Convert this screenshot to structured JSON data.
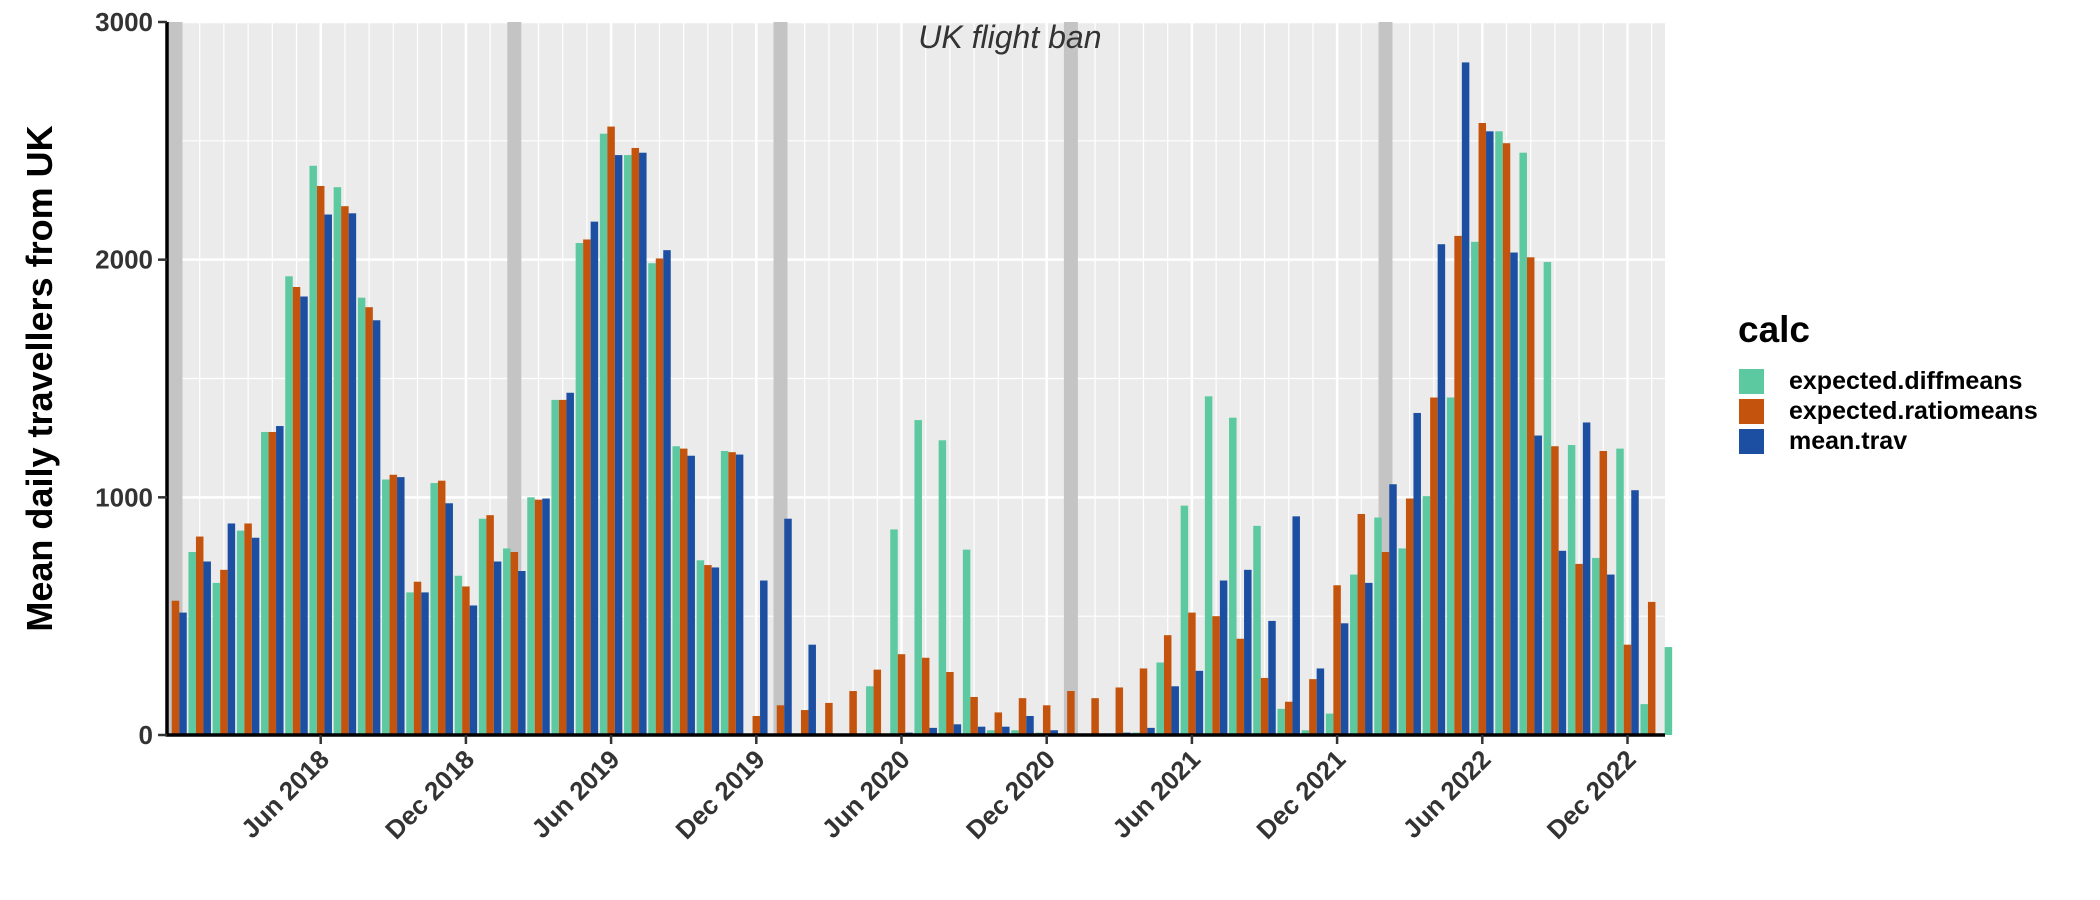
{
  "chart_data": {
    "type": "bar",
    "ylabel": "Mean daily travellers from UK",
    "xlabel": "",
    "ylim": [
      0,
      3000
    ],
    "yticks": [
      0,
      1000,
      2000,
      3000
    ],
    "grid": true,
    "legend_position": "right",
    "legend_title": "calc",
    "annotation": "UK flight ban",
    "annotation_bars": [
      "Dec 2017",
      "Feb 2019",
      "Jan 2020",
      "Jan 2021",
      "Feb 2022"
    ],
    "x_tick_labels": [
      "Jun 2018",
      "Dec 2018",
      "Jun 2019",
      "Dec 2019",
      "Jun 2020",
      "Dec 2020",
      "Jun 2021",
      "Dec 2021",
      "Jun 2022",
      "Dec 2022"
    ],
    "categories": [
      "Dec 2017",
      "Jan 2018",
      "Feb 2018",
      "Mar 2018",
      "Apr 2018",
      "May 2018",
      "Jun 2018",
      "Jul 2018",
      "Aug 2018",
      "Sep 2018",
      "Oct 2018",
      "Nov 2018",
      "Dec 2018",
      "Jan 2019",
      "Feb 2019",
      "Mar 2019",
      "Apr 2019",
      "May 2019",
      "Jun 2019",
      "Jul 2019",
      "Aug 2019",
      "Sep 2019",
      "Oct 2019",
      "Nov 2019",
      "Dec 2019",
      "Jan 2020",
      "Feb 2020",
      "Mar 2020",
      "Apr 2020",
      "May 2020",
      "Jun 2020",
      "Jul 2020",
      "Aug 2020",
      "Sep 2020",
      "Oct 2020",
      "Nov 2020",
      "Dec 2020",
      "Jan 2021",
      "Feb 2021",
      "Mar 2021",
      "Apr 2021",
      "May 2021",
      "Jun 2021",
      "Jul 2021",
      "Aug 2021",
      "Sep 2021",
      "Oct 2021",
      "Nov 2021",
      "Dec 2021",
      "Jan 2022",
      "Feb 2022",
      "Mar 2022",
      "Apr 2022",
      "May 2022",
      "Jun 2022",
      "Jul 2022",
      "Aug 2022",
      "Sep 2022",
      "Oct 2022",
      "Nov 2022",
      "Dec 2022",
      "Jan 2023",
      "Feb 2023"
    ],
    "series": [
      {
        "name": "expected.diffmeans",
        "color": "#5cc9a0",
        "values": [
          null,
          770,
          640,
          860,
          1275,
          1930,
          2395,
          2305,
          1840,
          1075,
          600,
          1060,
          670,
          910,
          785,
          1000,
          1410,
          2070,
          2530,
          2440,
          1985,
          1215,
          735,
          1195,
          null,
          null,
          null,
          null,
          5,
          205,
          865,
          1325,
          1240,
          780,
          20,
          20,
          10,
          5,
          5,
          5,
          10,
          305,
          965,
          1425,
          1335,
          880,
          110,
          20,
          90,
          675,
          915,
          785,
          1005,
          1420,
          2075,
          2540,
          2450,
          1990,
          1220,
          745,
          1205,
          130,
          370
        ]
      },
      {
        "name": "expected.ratiomeans",
        "color": "#c4530d",
        "values": [
          565,
          835,
          695,
          890,
          1275,
          1885,
          2310,
          2225,
          1800,
          1095,
          645,
          1070,
          625,
          925,
          770,
          990,
          1410,
          2085,
          2560,
          2470,
          2005,
          1205,
          715,
          1190,
          80,
          125,
          105,
          135,
          185,
          275,
          340,
          325,
          265,
          160,
          95,
          155,
          125,
          185,
          155,
          200,
          280,
          420,
          515,
          500,
          405,
          240,
          140,
          235,
          630,
          930,
          770,
          995,
          1420,
          2100,
          2575,
          2490,
          2010,
          1215,
          720,
          1195,
          380,
          560,
          null
        ]
      },
      {
        "name": "mean.trav",
        "color": "#1c4fa1",
        "values": [
          515,
          730,
          890,
          830,
          1300,
          1845,
          2190,
          2195,
          1745,
          1085,
          600,
          975,
          545,
          730,
          690,
          995,
          1440,
          2160,
          2440,
          2450,
          2040,
          1175,
          705,
          1180,
          650,
          910,
          380,
          5,
          5,
          5,
          10,
          30,
          45,
          35,
          35,
          80,
          20,
          5,
          5,
          10,
          30,
          205,
          270,
          650,
          695,
          480,
          920,
          280,
          470,
          640,
          1055,
          1355,
          2065,
          2830,
          2540,
          2030,
          1260,
          775,
          1315,
          675,
          1030,
          null,
          null
        ]
      }
    ]
  }
}
